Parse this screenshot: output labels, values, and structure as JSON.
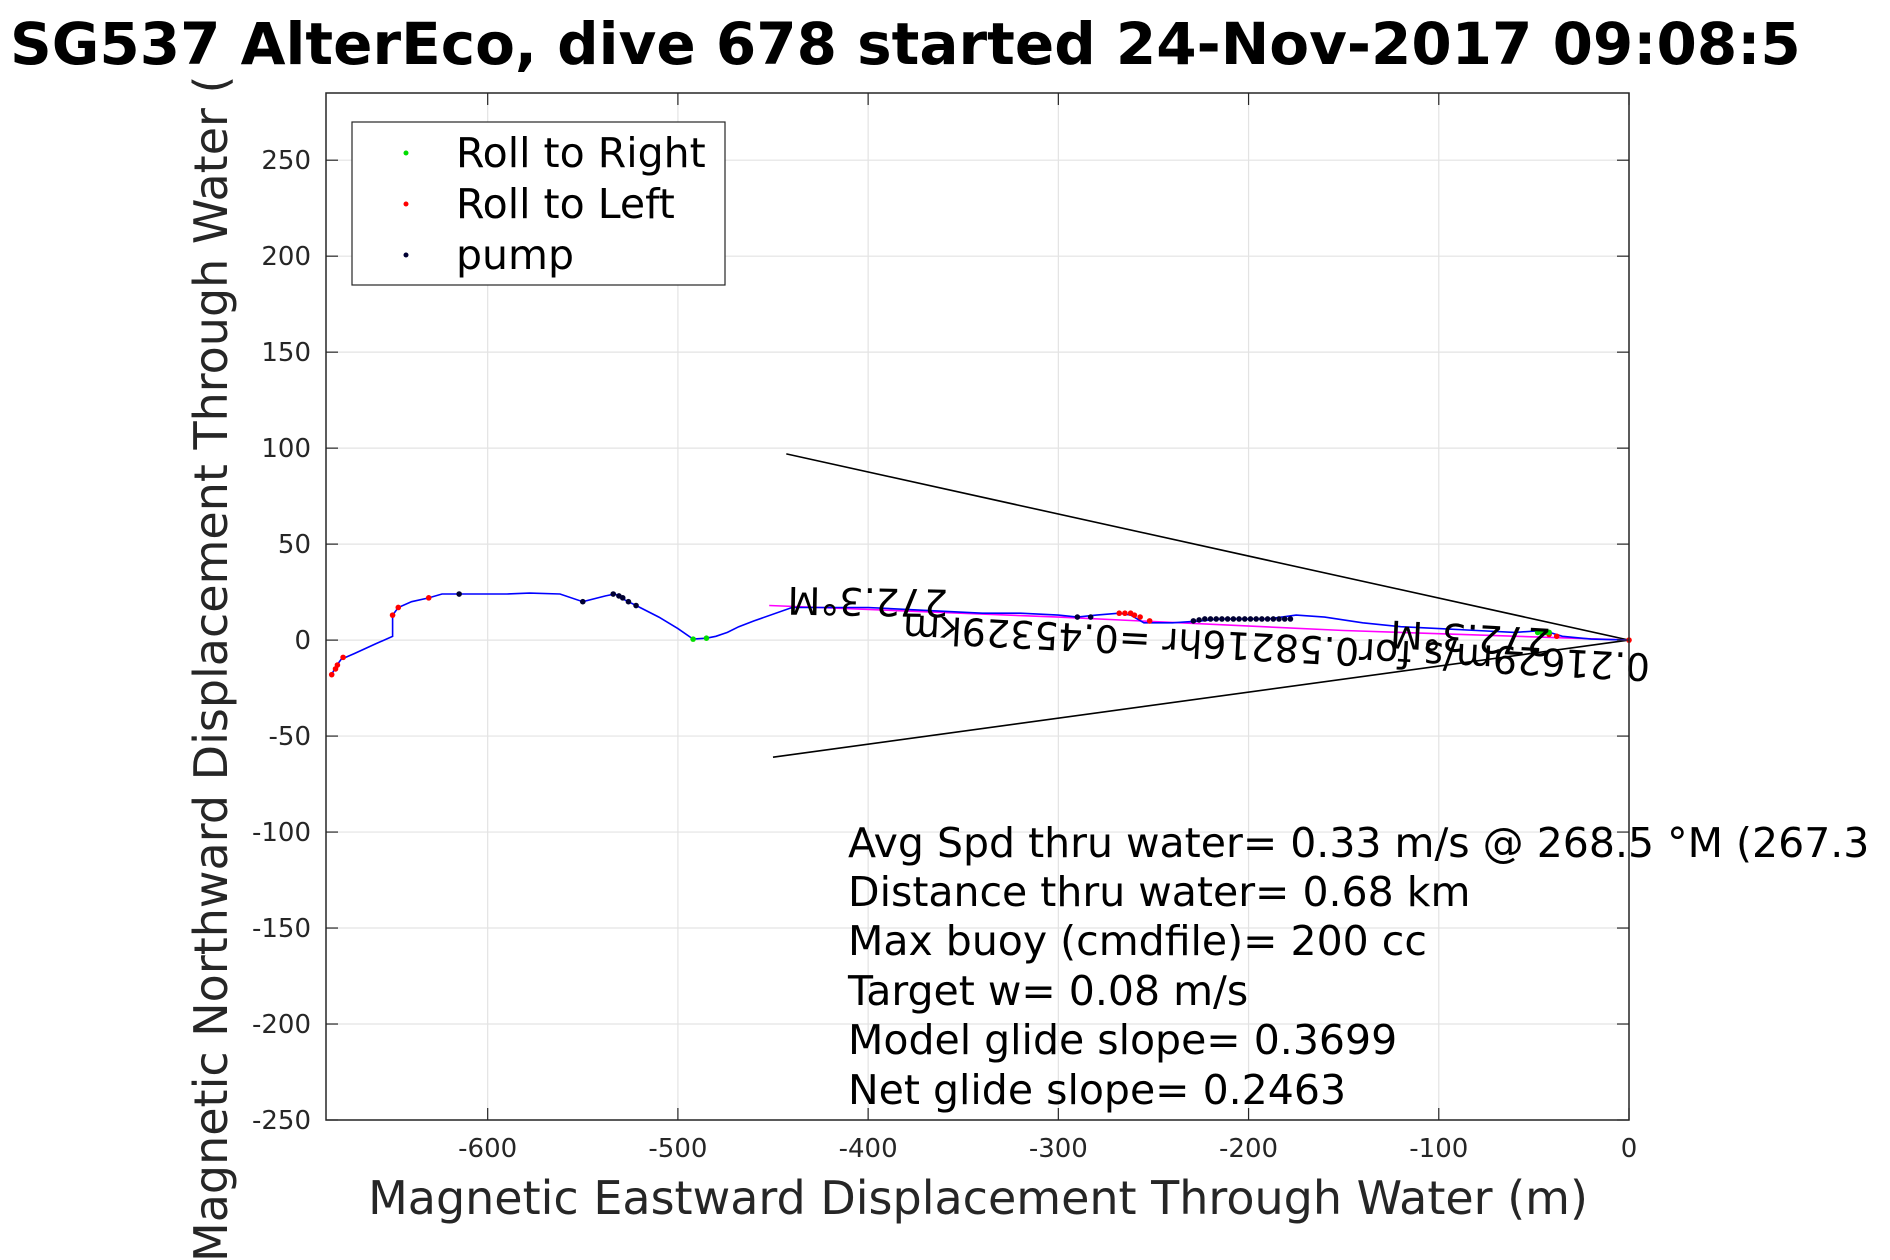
{
  "chart_data": {
    "type": "scatter",
    "title": "SG537 AlterEco, dive 678 started 24-Nov-2017 09:08:5",
    "xlabel": "Magnetic Eastward Displacement Through Water (m)",
    "ylabel": "Magnetic Northward Displacement Through Water (",
    "xlim": [
      -685,
      0
    ],
    "ylim": [
      -250,
      285
    ],
    "xticks": [
      -600,
      -500,
      -400,
      -300,
      -200,
      -100,
      0
    ],
    "yticks": [
      250,
      200,
      150,
      100,
      50,
      0,
      -50,
      -100,
      -150,
      -200,
      -250
    ],
    "grid": true,
    "legend_position": "top-left",
    "legend": [
      {
        "label": "Roll to Right",
        "color": "#00dd00"
      },
      {
        "label": "Roll to Left",
        "color": "#ff0000"
      },
      {
        "label": "pump",
        "color": "#000033"
      }
    ],
    "track": {
      "color": "#0000ff",
      "points": [
        [
          0,
          0
        ],
        [
          -20,
          0.5
        ],
        [
          -35,
          2
        ],
        [
          -45,
          5
        ],
        [
          -60,
          4
        ],
        [
          -80,
          5
        ],
        [
          -100,
          6
        ],
        [
          -120,
          7
        ],
        [
          -140,
          9
        ],
        [
          -160,
          12
        ],
        [
          -175,
          13
        ],
        [
          -190,
          11
        ],
        [
          -200,
          11
        ],
        [
          -215,
          11
        ],
        [
          -225,
          10
        ],
        [
          -240,
          9
        ],
        [
          -255,
          9
        ],
        [
          -262,
          13
        ],
        [
          -268,
          14
        ],
        [
          -280,
          13
        ],
        [
          -290,
          12
        ],
        [
          -300,
          13
        ],
        [
          -320,
          14
        ],
        [
          -340,
          14
        ],
        [
          -360,
          15
        ],
        [
          -380,
          16
        ],
        [
          -400,
          17
        ],
        [
          -420,
          17
        ],
        [
          -440,
          17
        ],
        [
          -460,
          10
        ],
        [
          -468,
          7
        ],
        [
          -474,
          4
        ],
        [
          -480,
          2
        ],
        [
          -485,
          1
        ],
        [
          -492,
          0.5
        ],
        [
          -500,
          6
        ],
        [
          -510,
          12
        ],
        [
          -522,
          18
        ],
        [
          -528,
          21
        ],
        [
          -533,
          24
        ],
        [
          -538,
          23
        ],
        [
          -550,
          20
        ],
        [
          -562,
          24
        ],
        [
          -578,
          24.5
        ],
        [
          -590,
          24
        ],
        [
          -603,
          24
        ],
        [
          -615,
          24
        ],
        [
          -624,
          24
        ],
        [
          -631,
          22
        ],
        [
          -640,
          20
        ],
        [
          -647,
          17
        ],
        [
          -650,
          13
        ],
        [
          -650,
          2
        ],
        [
          -659,
          -2
        ],
        [
          -670,
          -7
        ],
        [
          -677,
          -10
        ],
        [
          -680,
          -14
        ],
        [
          -682,
          -18
        ]
      ]
    },
    "guide": {
      "color": "#ff00ff",
      "points": [
        [
          0,
          0
        ],
        [
          -150,
          5
        ],
        [
          -300,
          12
        ],
        [
          -452,
          18
        ]
      ]
    },
    "cone_lines": [
      {
        "color": "#000000",
        "points": [
          [
            0,
            0
          ],
          [
            -443,
            97
          ]
        ]
      },
      {
        "color": "#000000",
        "points": [
          [
            0,
            0
          ],
          [
            -450,
            -61
          ]
        ]
      }
    ],
    "pump_points": [
      [
        -522,
        18
      ],
      [
        -526,
        20
      ],
      [
        -529,
        22
      ],
      [
        -531,
        23
      ],
      [
        -534,
        24
      ],
      [
        -550,
        20
      ],
      [
        -615,
        24
      ],
      [
        -290,
        12
      ],
      [
        -283,
        12
      ],
      [
        -229,
        10
      ],
      [
        -226,
        10.5
      ],
      [
        -223,
        11
      ],
      [
        -220,
        11
      ],
      [
        -217,
        11
      ],
      [
        -214,
        11
      ],
      [
        -211,
        11
      ],
      [
        -208,
        11
      ],
      [
        -205,
        11
      ],
      [
        -202,
        11
      ],
      [
        -199,
        11
      ],
      [
        -196,
        11
      ],
      [
        -193,
        11
      ],
      [
        -190,
        11
      ],
      [
        -187,
        11
      ],
      [
        -184,
        11
      ],
      [
        -181,
        11
      ],
      [
        -178,
        11
      ]
    ],
    "roll_left_points": [
      [
        -682,
        -18
      ],
      [
        -680,
        -15
      ],
      [
        -679,
        -13
      ],
      [
        -676,
        -9
      ],
      [
        -650,
        13
      ],
      [
        -647,
        17
      ],
      [
        -631,
        22
      ],
      [
        -268,
        14
      ],
      [
        -265,
        14
      ],
      [
        -262,
        14
      ],
      [
        -260,
        13
      ],
      [
        -257,
        12
      ],
      [
        -252,
        10
      ],
      [
        -42,
        3
      ],
      [
        -38,
        2
      ],
      [
        0,
        0
      ]
    ],
    "roll_right_points": [
      [
        -492,
        0.5
      ],
      [
        -485,
        1
      ],
      [
        -48,
        4
      ],
      [
        -46,
        4
      ],
      [
        -44,
        4
      ],
      [
        -42,
        4
      ]
    ],
    "rotated_labels": [
      {
        "text": "272.3°M",
        "at": [
          -400,
          27
        ],
        "rotate_deg": 181
      },
      {
        "text": "0.21629m/s for0.58216hr =0.45329km",
        "at": [
          -185,
          3
        ],
        "rotate_deg": 183
      },
      {
        "text": "272.3°M",
        "at": [
          -83,
          8
        ],
        "rotate_deg": 183
      }
    ],
    "annotations": [
      "Avg Spd thru water=  0.33 m/s @ 268.5 °M (267.3",
      "Distance thru water=  0.68 km",
      "Max buoy (cmdfile)= 200 cc",
      "Target w= 0.08 m/s",
      "Model glide slope= 0.3699",
      "Net glide slope= 0.2463"
    ]
  }
}
